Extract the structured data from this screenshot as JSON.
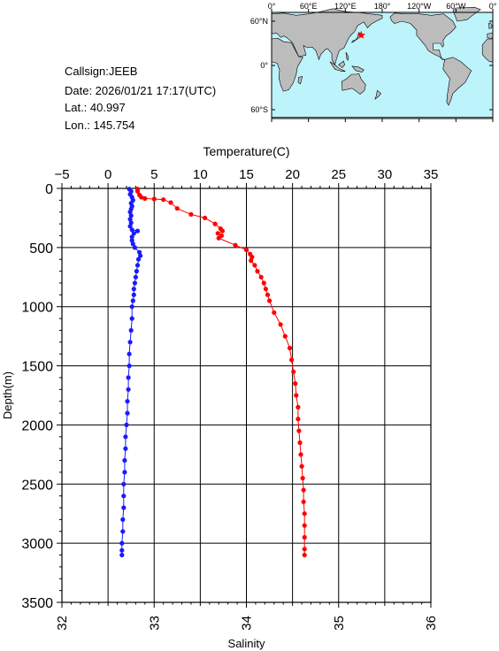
{
  "station": {
    "callsign": "Callsign:JEEB",
    "date": "Date:  2026/01/21 17:17(UTC)",
    "lat": "Lat.:  40.997",
    "lon": "Lon.:  145.754"
  },
  "map": {
    "lon_labels": [
      "0°",
      "60°E",
      "120°E",
      "180°",
      "120°W",
      "60°W",
      "0°"
    ],
    "lat_labels": [
      "60°N",
      "0°",
      "60°S"
    ],
    "station_lon": 145.754,
    "station_lat": 40.997,
    "colors": {
      "ocean": "#bdf3fb",
      "land": "#bcbcbc",
      "marker": "#ff0000"
    }
  },
  "chart_data": {
    "type": "scatter",
    "ylabel": "Depth(m)",
    "ylim": [
      0,
      3500
    ],
    "y_ticks": [
      0,
      500,
      1000,
      1500,
      2000,
      2500,
      3000,
      3500
    ],
    "temperature_axis": {
      "label": "Temperature(C)",
      "range": [
        -5,
        35
      ],
      "ticks": [
        -5,
        0,
        5,
        10,
        15,
        20,
        25,
        30,
        35
      ]
    },
    "salinity_axis": {
      "label": "Salinity",
      "range": [
        32,
        36
      ],
      "ticks": [
        32,
        33,
        34,
        35,
        36
      ]
    },
    "grid": true,
    "series": [
      {
        "color": "#ff0000",
        "axis": "temperature",
        "points": [
          [
            3.2,
            5
          ],
          [
            3.2,
            25
          ],
          [
            3.4,
            55
          ],
          [
            3.6,
            75
          ],
          [
            4.0,
            85
          ],
          [
            5.0,
            90
          ],
          [
            6.0,
            95
          ],
          [
            6.8,
            120
          ],
          [
            7.5,
            170
          ],
          [
            9.0,
            220
          ],
          [
            10.5,
            250
          ],
          [
            11.6,
            300
          ],
          [
            12.2,
            340
          ],
          [
            12.4,
            360
          ],
          [
            11.9,
            380
          ],
          [
            12.3,
            400
          ],
          [
            12.0,
            420
          ],
          [
            13.8,
            480
          ],
          [
            15.0,
            520
          ],
          [
            15.4,
            555
          ],
          [
            15.6,
            580
          ],
          [
            15.5,
            610
          ],
          [
            15.9,
            650
          ],
          [
            16.2,
            700
          ],
          [
            16.6,
            750
          ],
          [
            16.9,
            800
          ],
          [
            17.1,
            850
          ],
          [
            17.3,
            900
          ],
          [
            17.5,
            950
          ],
          [
            18.0,
            1050
          ],
          [
            18.7,
            1150
          ],
          [
            19.2,
            1250
          ],
          [
            19.7,
            1350
          ],
          [
            19.9,
            1450
          ],
          [
            20.1,
            1550
          ],
          [
            20.3,
            1650
          ],
          [
            20.4,
            1750
          ],
          [
            20.6,
            1850
          ],
          [
            20.6,
            1950
          ],
          [
            20.7,
            2050
          ],
          [
            20.8,
            2150
          ],
          [
            20.9,
            2250
          ],
          [
            21.0,
            2350
          ],
          [
            21.1,
            2450
          ],
          [
            21.2,
            2550
          ],
          [
            21.2,
            2650
          ],
          [
            21.3,
            2750
          ],
          [
            21.3,
            2850
          ],
          [
            21.3,
            2950
          ],
          [
            21.3,
            3050
          ],
          [
            21.3,
            3100
          ]
        ]
      },
      {
        "color": "#1a1aff",
        "axis": "salinity",
        "points": [
          [
            32.73,
            5
          ],
          [
            32.75,
            25
          ],
          [
            32.74,
            50
          ],
          [
            32.76,
            75
          ],
          [
            32.77,
            100
          ],
          [
            32.75,
            125
          ],
          [
            32.76,
            150
          ],
          [
            32.75,
            175
          ],
          [
            32.74,
            200
          ],
          [
            32.75,
            230
          ],
          [
            32.74,
            260
          ],
          [
            32.75,
            290
          ],
          [
            32.74,
            320
          ],
          [
            32.76,
            350
          ],
          [
            32.82,
            360
          ],
          [
            32.78,
            380
          ],
          [
            32.76,
            410
          ],
          [
            32.76,
            440
          ],
          [
            32.77,
            470
          ],
          [
            32.79,
            500
          ],
          [
            32.84,
            540
          ],
          [
            32.85,
            570
          ],
          [
            32.83,
            600
          ],
          [
            32.82,
            650
          ],
          [
            32.81,
            700
          ],
          [
            32.8,
            750
          ],
          [
            32.79,
            800
          ],
          [
            32.78,
            850
          ],
          [
            32.78,
            900
          ],
          [
            32.77,
            950
          ],
          [
            32.76,
            1000
          ],
          [
            32.76,
            1100
          ],
          [
            32.75,
            1200
          ],
          [
            32.74,
            1300
          ],
          [
            32.73,
            1400
          ],
          [
            32.73,
            1500
          ],
          [
            32.72,
            1600
          ],
          [
            32.72,
            1700
          ],
          [
            32.71,
            1800
          ],
          [
            32.71,
            1900
          ],
          [
            32.7,
            2000
          ],
          [
            32.69,
            2100
          ],
          [
            32.69,
            2200
          ],
          [
            32.68,
            2300
          ],
          [
            32.68,
            2400
          ],
          [
            32.67,
            2500
          ],
          [
            32.67,
            2600
          ],
          [
            32.67,
            2700
          ],
          [
            32.66,
            2800
          ],
          [
            32.66,
            2900
          ],
          [
            32.65,
            3000
          ],
          [
            32.65,
            3060
          ],
          [
            32.65,
            3100
          ]
        ]
      }
    ]
  }
}
